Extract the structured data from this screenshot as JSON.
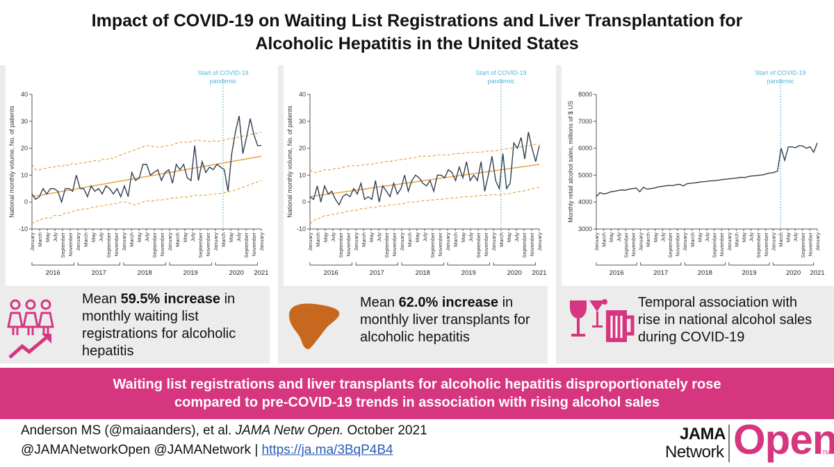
{
  "title": {
    "line1": "Impact of COVID-19 on Waiting List Registrations and Liver Transplantation for",
    "line2": "Alcoholic Hepatitis in the United States"
  },
  "colors": {
    "accent": "#d6367f",
    "observed": "#2e3f4f",
    "trend": "#e8a040",
    "covid_line": "#5ab4d6",
    "icon_orange": "#c8681e",
    "link": "#2a5ab5"
  },
  "month_labels": [
    "January",
    "March",
    "May",
    "July",
    "September",
    "November"
  ],
  "panels": [
    {
      "caption_pre": "Mean ",
      "caption_bold": "59.5% increase",
      "caption_post": " in monthly waiting list registrations for alcoholic hepatitis",
      "icon": "people-growth-icon"
    },
    {
      "caption_pre": "Mean ",
      "caption_bold": "62.0% increase",
      "caption_post": " in monthly liver transplants for alcoholic hepatitis",
      "icon": "liver-icon"
    },
    {
      "caption_pre": "",
      "caption_bold": "",
      "caption_post": "Temporal association with rise in national alcohol sales during COVID-19",
      "icon": "alcohol-icon"
    }
  ],
  "chart_data": [
    {
      "type": "line",
      "ylabel": "National monthly volume, No. of patients",
      "ylim": [
        -10,
        40
      ],
      "yticks": [
        -10,
        0,
        10,
        20,
        30,
        40
      ],
      "years": [
        "2016",
        "2017",
        "2018",
        "2019",
        "2020",
        "2021"
      ],
      "annotation": [
        "Start of COVID-19",
        "pandemic"
      ],
      "covid_month_index": 50,
      "observed": [
        3,
        1,
        2,
        5,
        3,
        5,
        5,
        4,
        0,
        5,
        5,
        4,
        10,
        5,
        5,
        2,
        6,
        4,
        5,
        3,
        6,
        5,
        3,
        5,
        2,
        6,
        2,
        11,
        8,
        9,
        14,
        14,
        10,
        11,
        12,
        8,
        11,
        12,
        7,
        14,
        12,
        14,
        9,
        8,
        21,
        8,
        15,
        11,
        13,
        12,
        14,
        13,
        12,
        4,
        18,
        26,
        32,
        18,
        24,
        31,
        25,
        21,
        21
      ],
      "trend": {
        "start": 2,
        "end": 17
      },
      "upper_band": [
        14,
        12,
        12,
        12.5,
        12.5,
        13,
        13,
        13.5,
        13,
        14,
        13.5,
        14.5,
        14,
        14.5,
        14.5,
        15,
        15,
        15.5,
        15,
        16,
        15.5,
        16.5,
        16,
        17,
        17.5,
        18,
        18.5,
        19,
        19.5,
        20,
        20.5,
        21,
        20.8,
        20.6,
        20.4,
        20.5,
        20.8,
        21,
        21.2,
        21.8,
        22,
        22.5,
        22,
        22.5,
        22.8,
        23,
        22.6,
        22.8,
        22.5,
        22.8,
        22.5,
        22.8,
        23,
        23.5,
        23.5,
        24,
        24,
        24.5,
        24.5,
        25,
        25.5,
        25.5,
        26
      ],
      "lower_band": [
        -8,
        -7,
        -7,
        -6,
        -6,
        -6,
        -5,
        -5,
        -5,
        -4,
        -4,
        -3.5,
        -3,
        -3,
        -2.5,
        -2.5,
        -2,
        -2,
        -1.5,
        -1.5,
        -1,
        -1,
        -0.5,
        -0.5,
        0,
        0,
        0,
        -1,
        -1,
        -0.5,
        0,
        0.5,
        0.2,
        0.5,
        0.8,
        0.8,
        1,
        1.2,
        1.5,
        1.5,
        1.8,
        2,
        1.8,
        2.2,
        2.5,
        2.5,
        2.5,
        2.5,
        2.8,
        3,
        3,
        3.2,
        3.5,
        3.8,
        4,
        4.5,
        5,
        5.5,
        6,
        6.5,
        7,
        7.5,
        8
      ]
    },
    {
      "type": "line",
      "ylabel": "National monthly volume, No. of patients",
      "ylim": [
        -10,
        40
      ],
      "yticks": [
        -10,
        0,
        10,
        20,
        30,
        40
      ],
      "years": [
        "2016",
        "2017",
        "2018",
        "2019",
        "2020",
        "2021"
      ],
      "annotation": [
        "Start of COVID-19",
        "pandemic"
      ],
      "covid_month_index": 50,
      "observed": [
        2,
        1,
        6,
        0,
        6,
        3,
        4,
        1,
        -1,
        2,
        3,
        2,
        5,
        3,
        7,
        1,
        2,
        1,
        8,
        0,
        6,
        4,
        2,
        7,
        3,
        5,
        10,
        4,
        8,
        10,
        9,
        7,
        6,
        8,
        4,
        10,
        10,
        9,
        12,
        11,
        8,
        13,
        9,
        15,
        8,
        10,
        8,
        15,
        4,
        10,
        17,
        8,
        5,
        18,
        5,
        7,
        22,
        20,
        24,
        16,
        26,
        20,
        15,
        21
      ],
      "trend": {
        "start": 2,
        "end": 14
      },
      "upper_band": [
        12,
        11,
        11,
        11.5,
        12,
        12,
        12,
        12.5,
        12.5,
        13,
        13,
        13.5,
        13.5,
        13.5,
        13.5,
        14,
        14,
        14,
        14.5,
        14.5,
        14.8,
        15,
        15,
        15.5,
        15.5,
        15.8,
        16,
        16,
        16.5,
        16.5,
        17,
        17,
        17,
        17,
        17.2,
        17.5,
        17.5,
        17.5,
        17.5,
        17.8,
        18,
        18,
        18,
        18.3,
        18.5,
        18.5,
        18.5,
        18.5,
        18.8,
        19,
        19,
        19,
        19.5,
        19.5,
        19.8,
        20,
        20,
        20.5,
        20.5,
        20.8,
        21,
        21,
        21.5,
        21.5
      ],
      "lower_band": [
        -8,
        -7,
        -6,
        -6,
        -5,
        -5,
        -4.5,
        -4.5,
        -4,
        -4,
        -3.5,
        -3.5,
        -3,
        -3,
        -2.5,
        -2.5,
        -2,
        -2,
        -2,
        -1.5,
        -1.5,
        -1.5,
        -1,
        -1,
        -1,
        -0.5,
        -0.5,
        0,
        0,
        0,
        0.3,
        0.5,
        0.5,
        0.8,
        0.8,
        1,
        1,
        1.2,
        1.3,
        1.5,
        1.5,
        1.8,
        2,
        2,
        2,
        2.2,
        2.3,
        2.5,
        2.5,
        2.5,
        2.7,
        2.8,
        2.5,
        3,
        3,
        3.2,
        3.5,
        3.8,
        4,
        4.2,
        4.5,
        5,
        5.2,
        5.5
      ],
      "x_is_64": true
    },
    {
      "type": "line",
      "ylabel": "Monthly retail alcohol sales, millions of $ US",
      "ylim": [
        3000,
        8000
      ],
      "yticks": [
        3000,
        4000,
        5000,
        6000,
        7000,
        8000
      ],
      "years": [
        "2016",
        "2017",
        "2018",
        "2019",
        "2020",
        "2021"
      ],
      "annotation": [
        "Start of COVID-19",
        "pandemic"
      ],
      "covid_month_index": 50,
      "observed": [
        4200,
        4350,
        4300,
        4330,
        4380,
        4400,
        4430,
        4450,
        4440,
        4480,
        4500,
        4520,
        4380,
        4550,
        4480,
        4500,
        4520,
        4560,
        4580,
        4600,
        4620,
        4610,
        4640,
        4660,
        4600,
        4680,
        4700,
        4710,
        4730,
        4750,
        4760,
        4780,
        4790,
        4800,
        4820,
        4840,
        4850,
        4870,
        4880,
        4900,
        4920,
        4910,
        4950,
        4970,
        4980,
        5000,
        5010,
        5050,
        5080,
        5100,
        5150,
        6000,
        5550,
        6050,
        6050,
        6020,
        6100,
        6080,
        6000,
        6050,
        5850,
        6200
      ]
    }
  ],
  "banner": {
    "line1": "Waiting list registrations and liver transplants for alcoholic hepatitis disproportionately rose",
    "line2": "compared to pre-COVID-19 trends in association with rising alcohol sales"
  },
  "citation": {
    "authors": "Anderson MS (@maiaanders), et al. ",
    "journal": "JAMA Netw Open.",
    "date": " October 2021",
    "handles": "@JAMANetworkOpen @JAMANetwork  | ",
    "link": "https://ja.ma/3BqP4B4"
  },
  "brand": {
    "jama": "JAMA",
    "network": "Network",
    "open": "Open",
    "tm": "TM"
  }
}
